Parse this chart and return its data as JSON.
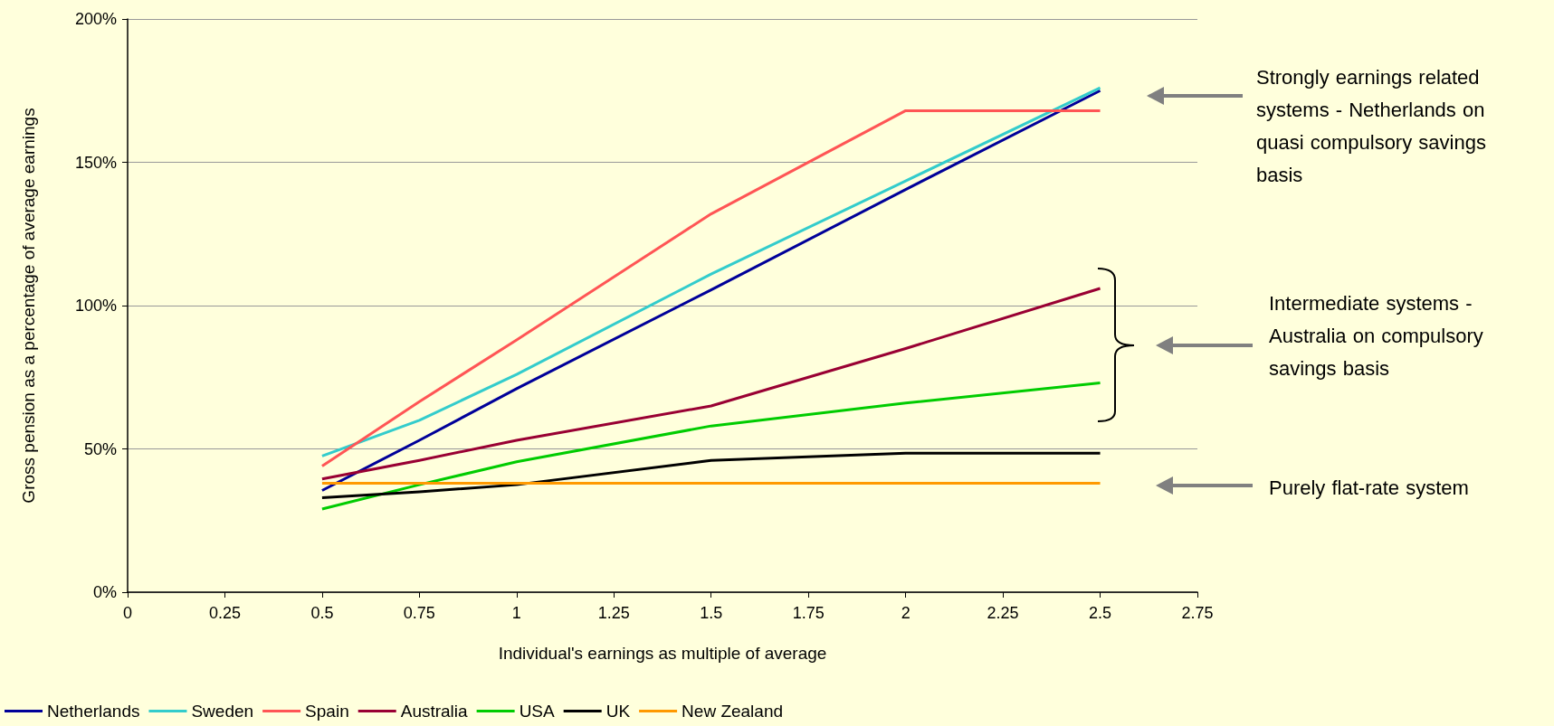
{
  "chart_data": {
    "type": "line",
    "xlabel": "Individual's earnings as multiple of average",
    "ylabel": "Gross pension as a percentage of average earnings",
    "x": [
      0.5,
      0.75,
      1,
      1.5,
      2,
      2.5
    ],
    "series": [
      {
        "name": "Netherlands",
        "color": "#000099",
        "values": [
          35.5,
          53,
          71,
          105.5,
          140.5,
          175
        ]
      },
      {
        "name": "Sweden",
        "color": "#33cccc",
        "values": [
          47.5,
          60,
          76,
          111,
          143.5,
          176
        ]
      },
      {
        "name": "Spain",
        "color": "#ff5555",
        "values": [
          44,
          66.5,
          88,
          132,
          168,
          168
        ]
      },
      {
        "name": "Australia",
        "color": "#990033",
        "values": [
          39.5,
          46,
          53,
          65,
          85,
          106
        ]
      },
      {
        "name": "USA",
        "color": "#00cc00",
        "values": [
          29,
          37.5,
          45.5,
          58,
          66,
          73
        ]
      },
      {
        "name": "UK",
        "color": "#000000",
        "values": [
          33,
          35,
          37.5,
          46,
          48.5,
          48.5
        ]
      },
      {
        "name": "New Zealand",
        "color": "#ff9900",
        "values": [
          38,
          38,
          38,
          38,
          38,
          38
        ]
      }
    ],
    "xlim": [
      0,
      2.75
    ],
    "xticks": [
      0,
      0.25,
      0.5,
      0.75,
      1,
      1.25,
      1.5,
      1.75,
      2,
      2.25,
      2.5,
      2.75
    ],
    "ylim": [
      0,
      200
    ],
    "yticks": [
      {
        "value": 0,
        "label": "0%"
      },
      {
        "value": 50,
        "label": "50%"
      },
      {
        "value": 100,
        "label": "100%"
      },
      {
        "value": 150,
        "label": "150%"
      },
      {
        "value": 200,
        "label": "200%"
      }
    ],
    "grid": "y",
    "legend": "bottom",
    "marker": "none",
    "line_style": "solid",
    "annotations": [
      "Strongly earnings related systems - Netherlands on quasi compulsory savings basis",
      "Intermediate systems - Australia on compulsory savings basis",
      "Purely flat-rate system"
    ]
  }
}
